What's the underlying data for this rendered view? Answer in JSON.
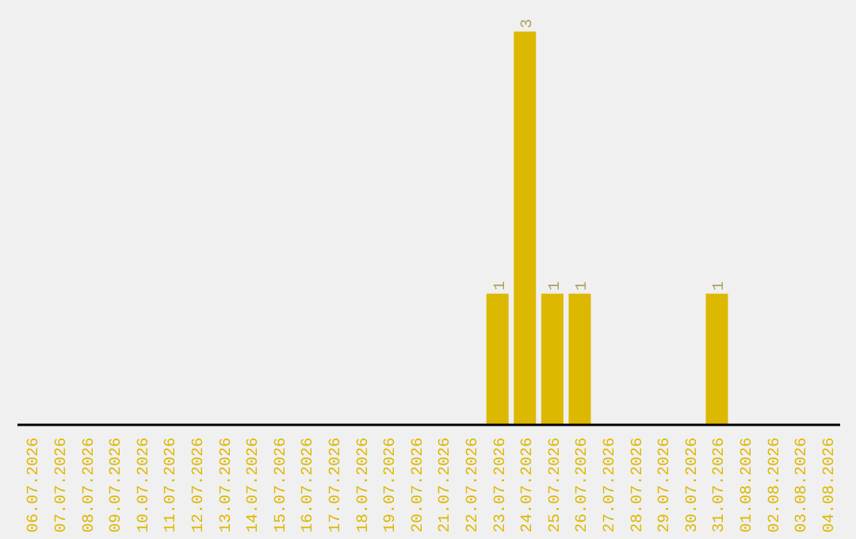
{
  "chart_data": {
    "type": "bar",
    "categories": [
      "06.07.2026",
      "07.07.2026",
      "08.07.2026",
      "09.07.2026",
      "10.07.2026",
      "11.07.2026",
      "12.07.2026",
      "13.07.2026",
      "14.07.2026",
      "15.07.2026",
      "16.07.2026",
      "17.07.2026",
      "18.07.2026",
      "19.07.2026",
      "20.07.2026",
      "21.07.2026",
      "22.07.2026",
      "23.07.2026",
      "24.07.2026",
      "25.07.2026",
      "26.07.2026",
      "27.07.2026",
      "28.07.2026",
      "29.07.2026",
      "30.07.2026",
      "31.07.2026",
      "01.08.2026",
      "02.08.2026",
      "03.08.2026",
      "04.08.2026"
    ],
    "values": [
      null,
      null,
      null,
      null,
      null,
      null,
      null,
      null,
      null,
      null,
      null,
      null,
      null,
      null,
      null,
      null,
      null,
      1,
      3,
      1,
      1,
      null,
      null,
      null,
      null,
      1,
      null,
      null,
      null,
      null
    ],
    "value_labels": [
      null,
      null,
      null,
      null,
      null,
      null,
      null,
      null,
      null,
      null,
      null,
      null,
      null,
      null,
      null,
      null,
      null,
      "1",
      "3",
      "1",
      "1",
      null,
      null,
      null,
      null,
      "1",
      null,
      null,
      null,
      null
    ],
    "color": "#ddb800"
  }
}
